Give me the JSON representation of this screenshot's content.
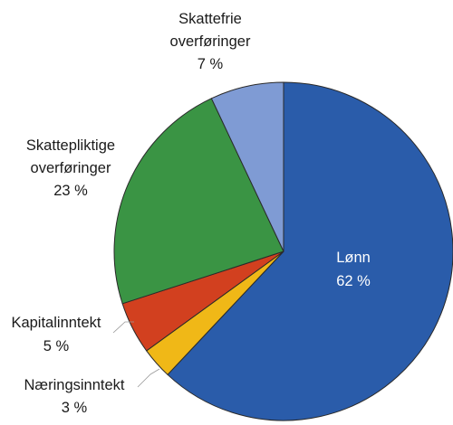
{
  "chart_data": {
    "type": "pie",
    "slices": [
      {
        "label": "Lønn",
        "value": 62,
        "value_label": "62 %",
        "color": "#2a5caa"
      },
      {
        "label": "Næringsinntekt",
        "value": 3,
        "value_label": "3 %",
        "color": "#f0b817"
      },
      {
        "label": "Kapitalinntekt",
        "value": 5,
        "value_label": "5 %",
        "color": "#d2401f"
      },
      {
        "label": "Skattepliktige overføringer",
        "label_lines": [
          "Skattepliktige",
          "overføringer"
        ],
        "value": 23,
        "value_label": "23 %",
        "color": "#3a9444"
      },
      {
        "label": "Skattefrie overføringer",
        "label_lines": [
          "Skattefrie",
          "overføringer"
        ],
        "value": 7,
        "value_label": "7 %",
        "color": "#7f9bd4"
      }
    ],
    "start_angle": "12 o'clock",
    "direction": "clockwise",
    "legend": "none"
  }
}
